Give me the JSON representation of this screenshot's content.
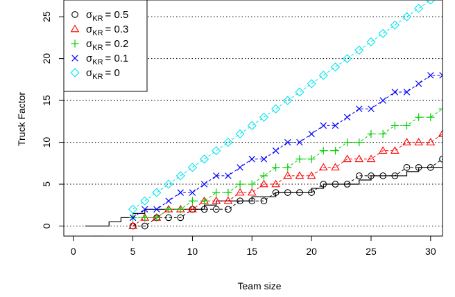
{
  "chart_data": {
    "type": "line",
    "xlabel": "Team size",
    "ylabel": "Truck Factor",
    "xlim": [
      -0.8,
      31
    ],
    "ylim": [
      -1.2,
      27
    ],
    "x_ticks": [
      0,
      5,
      10,
      15,
      20,
      25,
      30
    ],
    "y_ticks": [
      0,
      5,
      10,
      15,
      20,
      25
    ],
    "grid": "horizontal dotted",
    "legend_position": "top-left",
    "legend": [
      {
        "symbol": "σ",
        "subscript": "KR",
        "value": "= 0.5",
        "marker": "circle",
        "color": "#000000"
      },
      {
        "symbol": "σ",
        "subscript": "KR",
        "value": "= 0.3",
        "marker": "triangle",
        "color": "#ff0000"
      },
      {
        "symbol": "σ",
        "subscript": "KR",
        "value": "= 0.2",
        "marker": "plus",
        "color": "#00cd00"
      },
      {
        "symbol": "σ",
        "subscript": "KR",
        "value": "= 0.1",
        "marker": "cross",
        "color": "#0000ff"
      },
      {
        "symbol": "σ",
        "subscript": "KR",
        "value": "= 0",
        "marker": "diamond",
        "color": "#00e5ee"
      }
    ],
    "series": [
      {
        "marker": "circle",
        "color": "#000000",
        "x": [
          5,
          6,
          7,
          8,
          9,
          10,
          11,
          12,
          13,
          14,
          15,
          16,
          17,
          18,
          19,
          20,
          21,
          22,
          23,
          24,
          25,
          26,
          27,
          28,
          29,
          30,
          31
        ],
        "y": [
          0,
          0,
          1,
          1,
          1,
          2,
          2,
          2,
          2,
          3,
          3,
          3,
          4,
          4,
          4,
          4,
          5,
          5,
          5,
          6,
          6,
          6,
          6,
          7,
          7,
          7,
          8
        ]
      },
      {
        "marker": "triangle",
        "color": "#ff0000",
        "x": [
          5,
          6,
          7,
          8,
          9,
          10,
          11,
          12,
          13,
          14,
          15,
          16,
          17,
          18,
          19,
          20,
          21,
          22,
          23,
          24,
          25,
          26,
          27,
          28,
          29,
          30,
          31
        ],
        "y": [
          0,
          1,
          1,
          2,
          2,
          2,
          3,
          3,
          3,
          4,
          4,
          5,
          5,
          6,
          6,
          6,
          7,
          7,
          8,
          8,
          8,
          9,
          9,
          10,
          10,
          10,
          11
        ]
      },
      {
        "marker": "plus",
        "color": "#00cd00",
        "x": [
          5,
          6,
          7,
          8,
          9,
          10,
          11,
          12,
          13,
          14,
          15,
          16,
          17,
          18,
          19,
          20,
          21,
          22,
          23,
          24,
          25,
          26,
          27,
          28,
          29,
          30,
          31
        ],
        "y": [
          1,
          1,
          1,
          2,
          2,
          3,
          3,
          4,
          4,
          5,
          5,
          6,
          7,
          7,
          8,
          8,
          9,
          9,
          10,
          10,
          11,
          11,
          12,
          12,
          13,
          13,
          14
        ]
      },
      {
        "marker": "cross",
        "color": "#0000ff",
        "x": [
          5,
          6,
          7,
          8,
          9,
          10,
          11,
          12,
          13,
          14,
          15,
          16,
          17,
          18,
          19,
          20,
          21,
          22,
          23,
          24,
          25,
          26,
          27,
          28,
          29,
          30,
          31
        ],
        "y": [
          1,
          2,
          2,
          3,
          4,
          4,
          5,
          6,
          6,
          7,
          8,
          8,
          9,
          10,
          10,
          11,
          12,
          12,
          13,
          14,
          14,
          15,
          16,
          16,
          17,
          18,
          18
        ]
      },
      {
        "marker": "diamond",
        "color": "#00e5ee",
        "x": [
          5,
          6,
          7,
          8,
          9,
          10,
          11,
          12,
          13,
          14,
          15,
          16,
          17,
          18,
          19,
          20,
          21,
          22,
          23,
          24,
          25,
          26,
          27,
          28,
          29,
          30,
          31
        ],
        "y": [
          2,
          3,
          4,
          5,
          6,
          7,
          8,
          9,
          10,
          11,
          12,
          13,
          14,
          15,
          16,
          17,
          18,
          19,
          20,
          21,
          22,
          23,
          24,
          25,
          26,
          27,
          28
        ]
      }
    ],
    "step_line": {
      "color": "#000000",
      "x": [
        1,
        2,
        3,
        4,
        5,
        6,
        7,
        8,
        9,
        10,
        11,
        12,
        13,
        14,
        15,
        16,
        17,
        18,
        19,
        20,
        21,
        22,
        23,
        24,
        25,
        26,
        27,
        28,
        29,
        30,
        31
      ],
      "y": [
        0,
        0,
        0.5,
        1,
        1.5,
        2,
        2,
        2,
        2,
        2,
        2.5,
        3,
        3,
        3,
        3.5,
        3.5,
        4,
        4,
        4,
        4.5,
        5,
        5,
        5,
        5.5,
        6,
        6,
        6,
        6.5,
        7,
        7,
        7
      ]
    }
  }
}
